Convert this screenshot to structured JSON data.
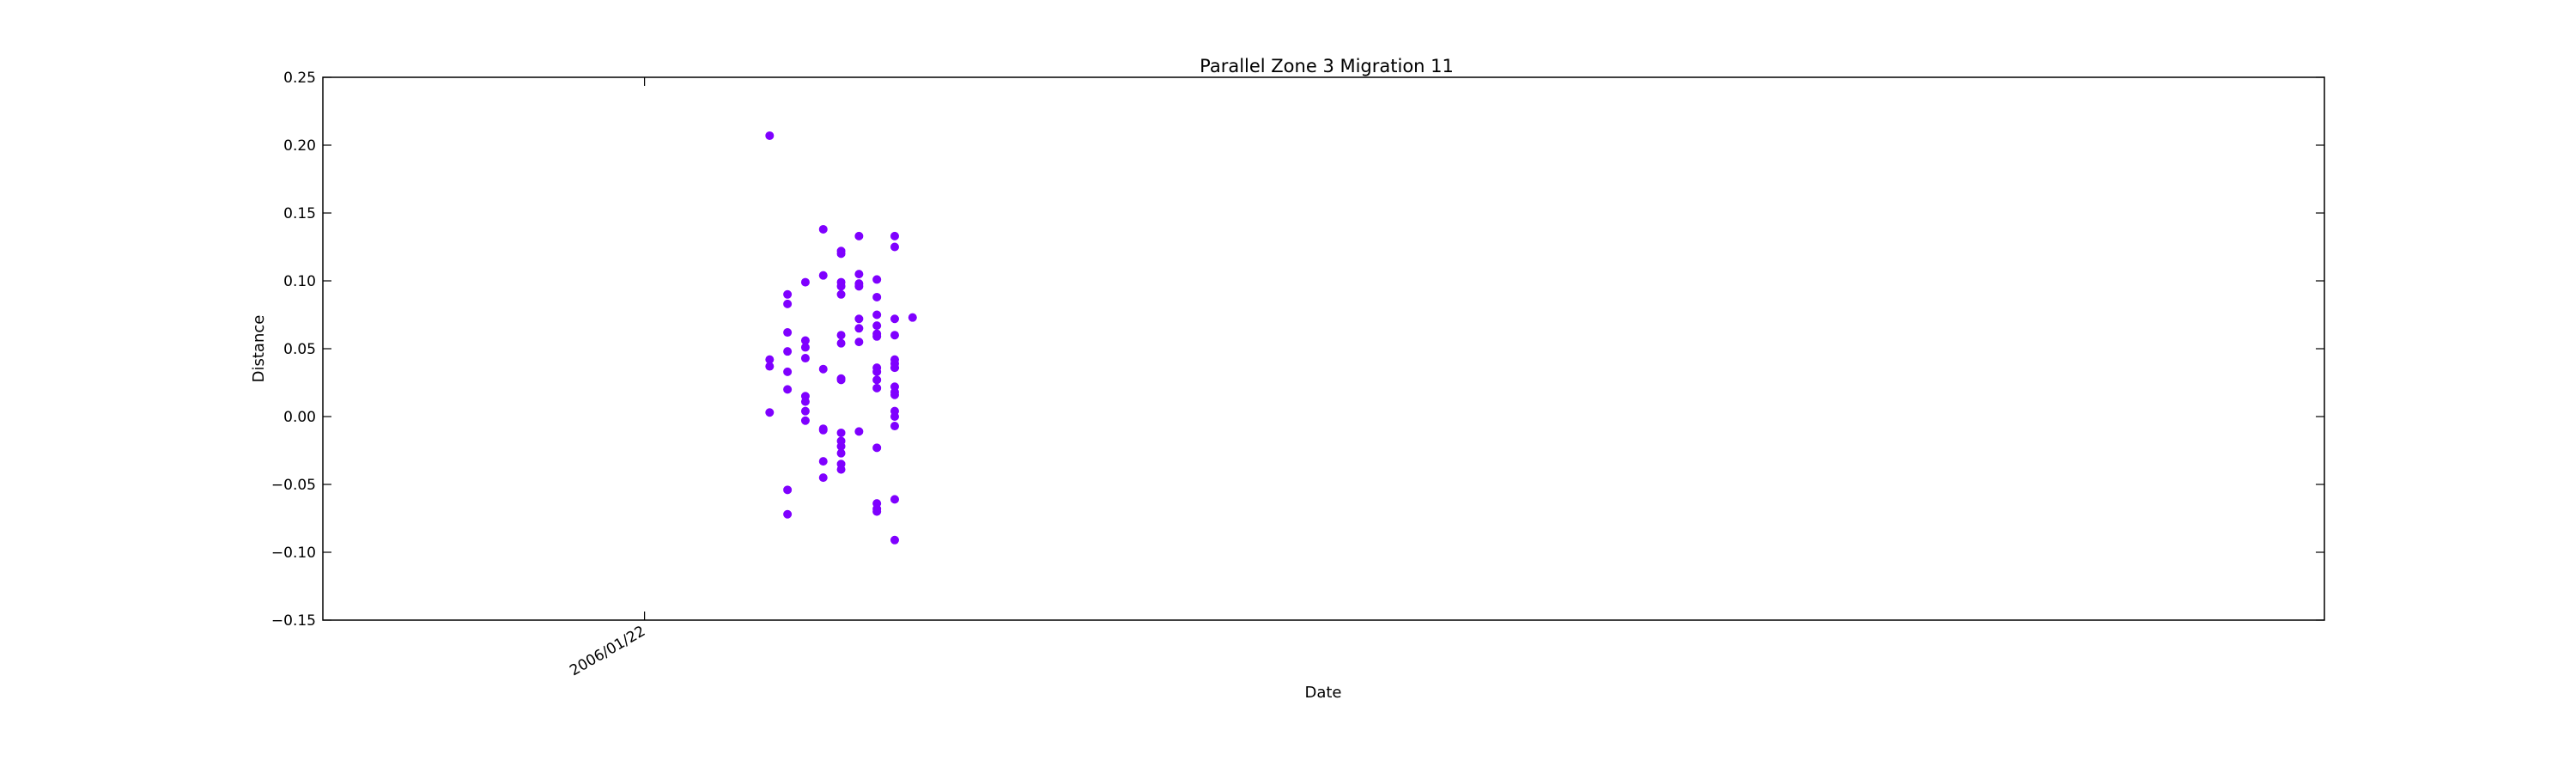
{
  "chart_data": {
    "type": "scatter",
    "title": "Parallel Zone 3 Migration 11",
    "xlabel": "Date",
    "ylabel": "Distance",
    "ylim": [
      -0.15,
      0.25
    ],
    "yticks": [
      -0.15,
      -0.1,
      -0.05,
      0.0,
      0.05,
      0.1,
      0.15,
      0.2,
      0.25
    ],
    "ytick_labels": [
      "−0.15",
      "−0.10",
      "−0.05",
      "0.00",
      "0.05",
      "0.10",
      "0.15",
      "0.20",
      "0.25"
    ],
    "xtick_labels": [
      "2006/01/22"
    ],
    "xlim": [
      "2006/01/04",
      "2006/04/26"
    ],
    "xticks": [
      "2006/01/22"
    ],
    "grid": false,
    "marker_color": "#7f00ff",
    "points": [
      {
        "x": "2006/01/29",
        "y": 0.207
      },
      {
        "x": "2006/01/29",
        "y": 0.042
      },
      {
        "x": "2006/01/29",
        "y": 0.037
      },
      {
        "x": "2006/01/29",
        "y": 0.003
      },
      {
        "x": "2006/01/30",
        "y": -0.072
      },
      {
        "x": "2006/01/30",
        "y": 0.083
      },
      {
        "x": "2006/01/30",
        "y": 0.09
      },
      {
        "x": "2006/01/30",
        "y": 0.048
      },
      {
        "x": "2006/01/30",
        "y": -0.054
      },
      {
        "x": "2006/01/30",
        "y": 0.033
      },
      {
        "x": "2006/01/30",
        "y": 0.02
      },
      {
        "x": "2006/01/30",
        "y": 0.062
      },
      {
        "x": "2006/01/31",
        "y": 0.051
      },
      {
        "x": "2006/01/31",
        "y": 0.099
      },
      {
        "x": "2006/01/31",
        "y": 0.056
      },
      {
        "x": "2006/01/31",
        "y": 0.043
      },
      {
        "x": "2006/02/01",
        "y": 0.104
      },
      {
        "x": "2006/01/31",
        "y": 0.004
      },
      {
        "x": "2006/01/31",
        "y": -0.003
      },
      {
        "x": "2006/01/31",
        "y": 0.015
      },
      {
        "x": "2006/01/31",
        "y": 0.011
      },
      {
        "x": "2006/02/01",
        "y": 0.035
      },
      {
        "x": "2006/02/01",
        "y": -0.01
      },
      {
        "x": "2006/02/01",
        "y": -0.033
      },
      {
        "x": "2006/02/01",
        "y": -0.045
      },
      {
        "x": "2006/02/01",
        "y": 0.138
      },
      {
        "x": "2006/02/01",
        "y": -0.009
      },
      {
        "x": "2006/02/02",
        "y": 0.122
      },
      {
        "x": "2006/02/02",
        "y": 0.12
      },
      {
        "x": "2006/02/02",
        "y": 0.099
      },
      {
        "x": "2006/02/02",
        "y": 0.096
      },
      {
        "x": "2006/02/02",
        "y": 0.09
      },
      {
        "x": "2006/02/02",
        "y": 0.054
      },
      {
        "x": "2006/02/02",
        "y": 0.06
      },
      {
        "x": "2006/02/02",
        "y": 0.028
      },
      {
        "x": "2006/02/02",
        "y": 0.027
      },
      {
        "x": "2006/02/02",
        "y": -0.012
      },
      {
        "x": "2006/02/02",
        "y": -0.018
      },
      {
        "x": "2006/02/02",
        "y": -0.022
      },
      {
        "x": "2006/02/02",
        "y": -0.027
      },
      {
        "x": "2006/02/02",
        "y": -0.035
      },
      {
        "x": "2006/02/02",
        "y": -0.039
      },
      {
        "x": "2006/02/03",
        "y": -0.011
      },
      {
        "x": "2006/02/03",
        "y": 0.065
      },
      {
        "x": "2006/02/03",
        "y": 0.098
      },
      {
        "x": "2006/02/03",
        "y": 0.133
      },
      {
        "x": "2006/02/03",
        "y": 0.105
      },
      {
        "x": "2006/02/03",
        "y": 0.096
      },
      {
        "x": "2006/02/03",
        "y": 0.072
      },
      {
        "x": "2006/02/03",
        "y": 0.055
      },
      {
        "x": "2006/02/04",
        "y": 0.101
      },
      {
        "x": "2006/02/04",
        "y": 0.059
      },
      {
        "x": "2006/02/04",
        "y": 0.036
      },
      {
        "x": "2006/02/04",
        "y": 0.033
      },
      {
        "x": "2006/02/04",
        "y": 0.088
      },
      {
        "x": "2006/02/04",
        "y": 0.075
      },
      {
        "x": "2006/02/04",
        "y": 0.067
      },
      {
        "x": "2006/02/04",
        "y": -0.07
      },
      {
        "x": "2006/02/04",
        "y": 0.061
      },
      {
        "x": "2006/02/04",
        "y": 0.027
      },
      {
        "x": "2006/02/04",
        "y": 0.021
      },
      {
        "x": "2006/02/04",
        "y": -0.023
      },
      {
        "x": "2006/02/04",
        "y": -0.064
      },
      {
        "x": "2006/02/04",
        "y": -0.068
      },
      {
        "x": "2006/02/05",
        "y": 0.072
      },
      {
        "x": "2006/02/05",
        "y": 0.039
      },
      {
        "x": "2006/02/05",
        "y": 0.004
      },
      {
        "x": "2006/02/05",
        "y": -0.007
      },
      {
        "x": "2006/02/05",
        "y": 0.042
      },
      {
        "x": "2006/02/05",
        "y": 0.022
      },
      {
        "x": "2006/02/05",
        "y": 0.016
      },
      {
        "x": "2006/02/05",
        "y": 0.133
      },
      {
        "x": "2006/02/05",
        "y": 0.125
      },
      {
        "x": "2006/02/05",
        "y": 0.06
      },
      {
        "x": "2006/02/05",
        "y": 0.036
      },
      {
        "x": "2006/02/05",
        "y": 0.0
      },
      {
        "x": "2006/02/05",
        "y": -0.061
      },
      {
        "x": "2006/02/05",
        "y": -0.091
      },
      {
        "x": "2006/02/05",
        "y": 0.036
      },
      {
        "x": "2006/02/05",
        "y": 0.018
      },
      {
        "x": "2006/02/06",
        "y": 0.073
      }
    ]
  }
}
